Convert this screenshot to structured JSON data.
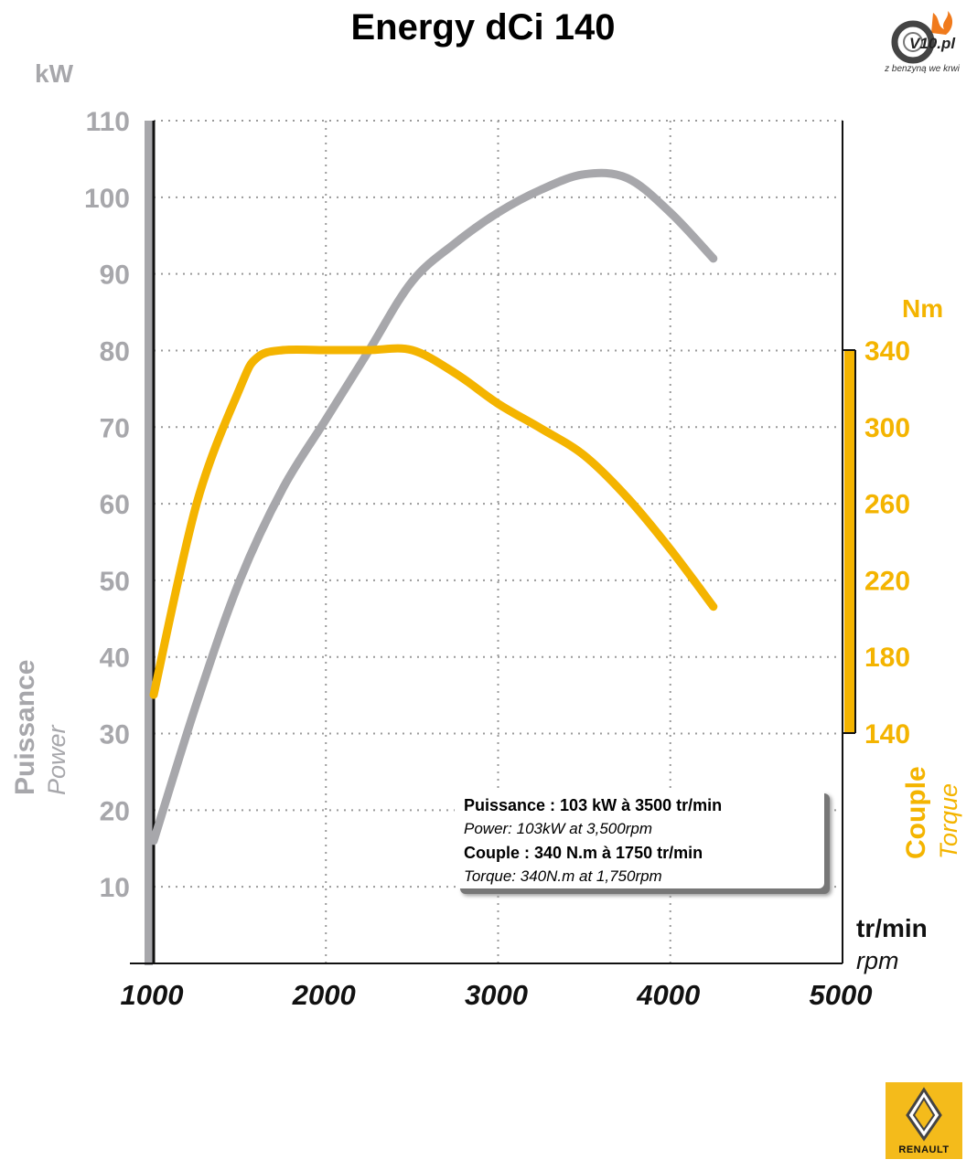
{
  "chart_data": {
    "type": "line",
    "title": "Energy dCi 140",
    "xlabel": "tr/min",
    "xlabel_alt": "rpm",
    "x_ticks": [
      1000,
      2000,
      3000,
      4000,
      5000
    ],
    "xlim": [
      1000,
      5000
    ],
    "grid": true,
    "left_axis": {
      "unit": "kW",
      "label": "Puissance",
      "label_alt": "Power",
      "ticks": [
        10,
        20,
        30,
        40,
        50,
        60,
        70,
        80,
        90,
        100,
        110
      ],
      "ylim": [
        0,
        110
      ],
      "color": "#a7a7ab"
    },
    "right_axis": {
      "unit": "Nm",
      "label": "Couple",
      "label_alt": "Torque",
      "ticks": [
        140,
        180,
        220,
        260,
        300,
        340
      ],
      "ylim": [
        140,
        340
      ],
      "color": "#f4b400"
    },
    "series": [
      {
        "id": "power",
        "axis": "left",
        "color": "#a7a7ab",
        "x": [
          1000,
          1250,
          1500,
          1750,
          2000,
          2250,
          2500,
          2750,
          3000,
          3250,
          3500,
          3750,
          4000,
          4250
        ],
        "values": [
          16,
          34,
          50,
          62,
          71,
          80,
          89,
          94,
          98,
          101,
          103,
          102.5,
          98,
          92
        ]
      },
      {
        "id": "torque",
        "axis": "right",
        "color": "#f4b400",
        "x": [
          1000,
          1250,
          1500,
          1600,
          1750,
          2000,
          2250,
          2500,
          2750,
          3000,
          3250,
          3500,
          3750,
          4000,
          4250
        ],
        "values": [
          160,
          260,
          320,
          336,
          340,
          340,
          340,
          340,
          328,
          312,
          299,
          285,
          263,
          236,
          206
        ]
      }
    ],
    "annotation": {
      "line1": "Puissance : 103 kW à 3500 tr/min",
      "line2": "Power: 103kW at 3,500rpm",
      "line3": "Couple : 340 N.m à 1750 tr/min",
      "line4": "Torque: 340N.m at 1,750rpm"
    }
  },
  "branding": {
    "site_logo_text": "V10.pl",
    "site_tagline": "z benzyną we krwi",
    "brand_logo_text": "RENAULT"
  }
}
